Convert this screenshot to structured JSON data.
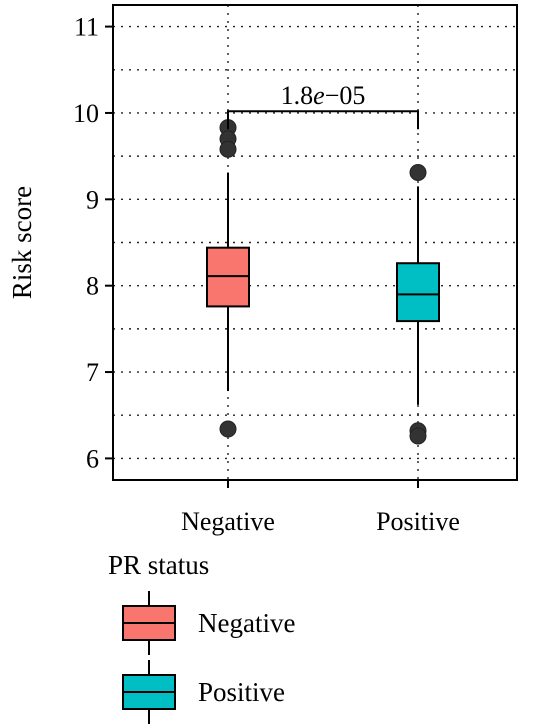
{
  "chart_data": {
    "type": "box",
    "xlabel": "",
    "ylabel": "Risk score",
    "ylim": [
      5.75,
      11.25
    ],
    "yticks": [
      6,
      7,
      8,
      9,
      10,
      11
    ],
    "grid": true,
    "categories": [
      "Negative",
      "Positive"
    ],
    "colors": {
      "Negative": "#F8766D",
      "Positive": "#00BFC4"
    },
    "boxes": [
      {
        "name": "Negative",
        "whisker_low": 6.78,
        "q1": 7.76,
        "median": 8.11,
        "q3": 8.44,
        "whisker_high": 9.31,
        "outliers": [
          9.83,
          9.7,
          9.58,
          6.34
        ]
      },
      {
        "name": "Positive",
        "whisker_low": 6.62,
        "q1": 7.59,
        "median": 7.9,
        "q3": 8.26,
        "whisker_high": 9.15,
        "outliers": [
          9.31,
          6.32,
          6.26
        ]
      }
    ],
    "comparison": {
      "from": "Negative",
      "to": "Positive",
      "y": 10.02,
      "label_prefix": "1.8",
      "label_exp": "e",
      "label_suffix": "−05"
    },
    "legend": {
      "title": "PR status",
      "position": "bottom",
      "items": [
        "Negative",
        "Positive"
      ]
    }
  }
}
